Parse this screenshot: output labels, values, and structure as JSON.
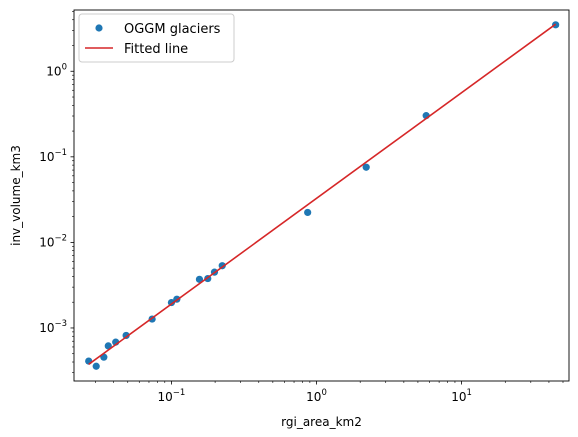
{
  "chart_data": {
    "type": "scatter",
    "xscale": "log",
    "yscale": "log",
    "xlabel": "rgi_area_km2",
    "ylabel": "inv_volume_km3",
    "xlim": [
      0.0213,
      55
    ],
    "ylim": [
      0.00024,
      5.2
    ],
    "x_ticks": [
      {
        "value": 0.1,
        "base": "10",
        "exp": "−1"
      },
      {
        "value": 1,
        "base": "10",
        "exp": "0"
      },
      {
        "value": 10,
        "base": "10",
        "exp": "1"
      }
    ],
    "y_ticks": [
      {
        "value": 0.001,
        "base": "10",
        "exp": "−3"
      },
      {
        "value": 0.01,
        "base": "10",
        "exp": "−2"
      },
      {
        "value": 0.1,
        "base": "10",
        "exp": "−1"
      },
      {
        "value": 1,
        "base": "10",
        "exp": "0"
      }
    ],
    "series": [
      {
        "name": "OGGM glaciers",
        "kind": "scatter",
        "color": "#1f77b4",
        "points": [
          {
            "x": 0.0269,
            "y": 0.00041
          },
          {
            "x": 0.0303,
            "y": 0.000357
          },
          {
            "x": 0.0342,
            "y": 0.000456
          },
          {
            "x": 0.0367,
            "y": 0.000617
          },
          {
            "x": 0.0413,
            "y": 0.000683
          },
          {
            "x": 0.0487,
            "y": 0.000818
          },
          {
            "x": 0.0736,
            "y": 0.00127
          },
          {
            "x": 0.1,
            "y": 0.00198
          },
          {
            "x": 0.109,
            "y": 0.00217
          },
          {
            "x": 0.156,
            "y": 0.0037
          },
          {
            "x": 0.178,
            "y": 0.00378
          },
          {
            "x": 0.198,
            "y": 0.00449
          },
          {
            "x": 0.224,
            "y": 0.00534
          },
          {
            "x": 0.869,
            "y": 0.0224
          },
          {
            "x": 2.2,
            "y": 0.0756
          },
          {
            "x": 5.7,
            "y": 0.303
          },
          {
            "x": 44.5,
            "y": 3.49
          }
        ]
      },
      {
        "name": "Fitted line",
        "kind": "line",
        "color": "#d62728",
        "points": [
          {
            "x": 0.0269,
            "y": 0.000376
          },
          {
            "x": 44.5,
            "y": 3.55
          }
        ]
      }
    ],
    "legend": {
      "position": "top-left"
    },
    "grid": false
  }
}
